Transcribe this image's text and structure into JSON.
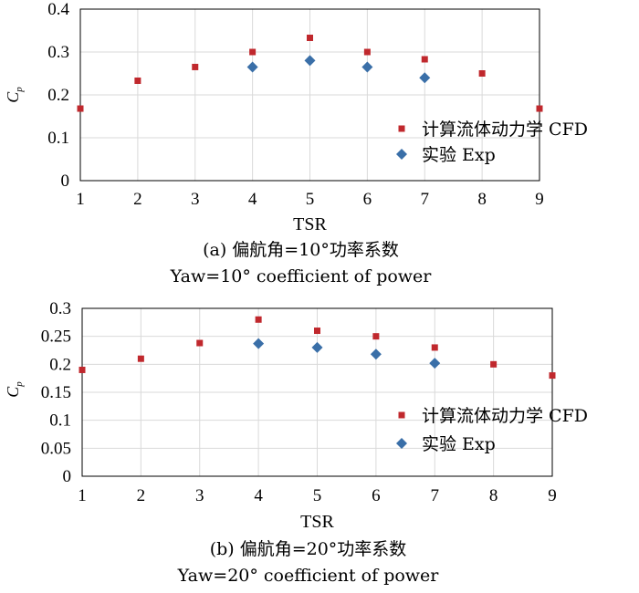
{
  "chart_data": [
    {
      "type": "scatter",
      "panel": "(a)",
      "caption_line1": "(a) 偏航角=10°功率系数",
      "caption_line2": "Yaw=10° coefficient of power",
      "xlabel": "TSR",
      "ylabel": "C",
      "ylabel_sub": "p",
      "xlim": [
        1,
        9
      ],
      "ylim": [
        0,
        0.4
      ],
      "xticks": [
        "1",
        "2",
        "3",
        "4",
        "5",
        "6",
        "7",
        "8",
        "9"
      ],
      "yticks": [
        "0",
        "0.1",
        "0.2",
        "0.3",
        "0.4"
      ],
      "grid": true,
      "legend_position": "right",
      "series": [
        {
          "name": "计算流体动力学 CFD",
          "marker": "square",
          "color": "#c0282d",
          "x": [
            1,
            2,
            3,
            4,
            5,
            6,
            7,
            8,
            9
          ],
          "y": [
            0.168,
            0.233,
            0.265,
            0.3,
            0.333,
            0.3,
            0.283,
            0.25,
            0.168
          ]
        },
        {
          "name": "实验 Exp",
          "marker": "diamond",
          "color": "#3a6fa8",
          "x": [
            4,
            5,
            6,
            7
          ],
          "y": [
            0.265,
            0.28,
            0.265,
            0.24
          ]
        }
      ]
    },
    {
      "type": "scatter",
      "panel": "(b)",
      "caption_line1": "(b) 偏航角=20°功率系数",
      "caption_line2": "Yaw=20° coefficient of power",
      "xlabel": "TSR",
      "ylabel": "C",
      "ylabel_sub": "p",
      "xlim": [
        1,
        9
      ],
      "ylim": [
        0,
        0.3
      ],
      "xticks": [
        "1",
        "2",
        "3",
        "4",
        "5",
        "6",
        "7",
        "8",
        "9"
      ],
      "yticks": [
        "0",
        "0.05",
        "0.1",
        "0.15",
        "0.2",
        "0.25",
        "0.3"
      ],
      "grid": true,
      "legend_position": "right",
      "series": [
        {
          "name": "计算流体动力学 CFD",
          "marker": "square",
          "color": "#c0282d",
          "x": [
            1,
            2,
            3,
            4,
            5,
            6,
            7,
            8,
            9
          ],
          "y": [
            0.19,
            0.21,
            0.238,
            0.28,
            0.26,
            0.25,
            0.23,
            0.2,
            0.18
          ]
        },
        {
          "name": "实验 Exp",
          "marker": "diamond",
          "color": "#3a6fa8",
          "x": [
            4,
            5,
            6,
            7
          ],
          "y": [
            0.237,
            0.23,
            0.218,
            0.202
          ]
        }
      ]
    }
  ]
}
